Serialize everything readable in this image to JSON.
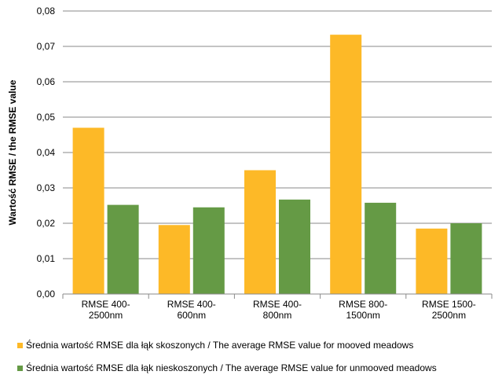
{
  "chart_data": {
    "type": "bar",
    "categories": [
      [
        "RMSE 400-",
        "2500nm"
      ],
      [
        "RMSE 400-",
        "600nm"
      ],
      [
        "RMSE 400-",
        "800nm"
      ],
      [
        "RMSE 800-",
        "1500nm"
      ],
      [
        "RMSE 1500-",
        "2500nm"
      ]
    ],
    "series": [
      {
        "name": "Średnia wartość RMSE dla łąk skoszonych / The average RMSE value for mooved meadows",
        "color": "#FDB927",
        "values": [
          0.047,
          0.0195,
          0.035,
          0.0733,
          0.0185
        ]
      },
      {
        "name": "Średnia wartość RMSE dla łąk nieskoszonych / The average RMSE value for unmooved meadows",
        "color": "#659A45",
        "values": [
          0.0252,
          0.0245,
          0.0267,
          0.0258,
          0.02
        ]
      }
    ],
    "ylabel": "Wartość RMSE / the RMSE value",
    "ylim": [
      0,
      0.08
    ],
    "yticks": [
      "0,00",
      "0,01",
      "0,02",
      "0,03",
      "0,04",
      "0,05",
      "0,06",
      "0,07",
      "0,08"
    ],
    "grid": true,
    "legend_position": "bottom"
  }
}
